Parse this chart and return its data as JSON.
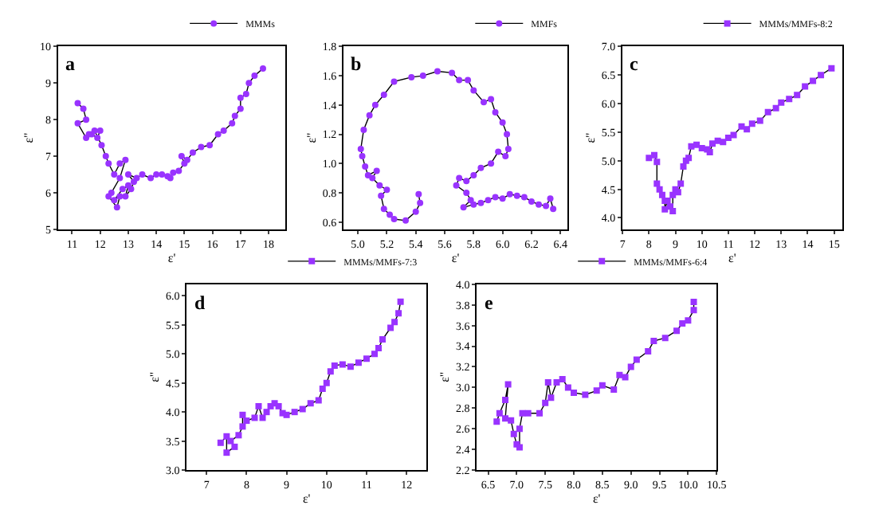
{
  "chart_data": [
    {
      "type": "line",
      "annotations": [
        "a"
      ],
      "xlabel": "ε'",
      "ylabel": "ε''",
      "xlim": [
        10.5,
        18.6
      ],
      "xticks": [
        11,
        12,
        13,
        14,
        15,
        16,
        17,
        18
      ],
      "ylim": [
        5,
        10
      ],
      "yticks": [
        5,
        6,
        7,
        8,
        9,
        10
      ],
      "marker": "circle",
      "legend": "top right",
      "series": [
        {
          "name": "MMMs",
          "color": "#9933ff",
          "x": [
            11.2,
            11.4,
            11.5,
            11.2,
            11.5,
            11.7,
            11.9,
            12.0,
            11.6,
            11.8,
            12.05,
            12.2,
            12.3,
            12.5,
            12.7,
            12.9,
            12.7,
            12.4,
            12.3,
            12.6,
            12.7,
            12.5,
            12.8,
            13.0,
            12.9,
            13.1,
            13.2,
            13.0,
            13.3,
            13.5,
            13.8,
            14.0,
            14.2,
            14.4,
            14.5,
            14.6,
            14.8,
            15.0,
            14.9,
            15.1,
            15.3,
            15.6,
            15.9,
            16.2,
            16.4,
            16.7,
            16.8,
            17.0,
            17.0,
            17.2,
            17.3,
            17.5,
            17.8
          ],
          "values": [
            8.45,
            8.3,
            8.0,
            7.9,
            7.5,
            7.6,
            7.5,
            7.7,
            7.6,
            7.7,
            7.3,
            7.0,
            6.8,
            6.5,
            6.8,
            6.9,
            6.4,
            6.0,
            5.9,
            5.6,
            5.9,
            5.8,
            6.1,
            6.2,
            5.9,
            6.1,
            6.3,
            6.5,
            6.4,
            6.5,
            6.4,
            6.5,
            6.5,
            6.45,
            6.4,
            6.55,
            6.6,
            6.8,
            7.0,
            6.9,
            7.1,
            7.25,
            7.3,
            7.6,
            7.7,
            7.9,
            8.1,
            8.3,
            8.6,
            8.7,
            9.0,
            9.2,
            9.4
          ]
        }
      ]
    },
    {
      "type": "line",
      "annotations": [
        "b"
      ],
      "xlabel": "ε'",
      "ylabel": "ε''",
      "xlim": [
        4.9,
        6.45
      ],
      "xticks": [
        {
          "value": 5.0,
          "label": "5.0"
        },
        5.2,
        5.4,
        5.6,
        5.8,
        {
          "value": 6.0,
          "label": "6.0"
        },
        6.2,
        6.4
      ],
      "ylim": [
        0.55,
        1.8
      ],
      "yticks": [
        0.6,
        0.8,
        {
          "value": 1.0,
          "label": "1.0"
        },
        1.2,
        1.4,
        1.6,
        1.8
      ],
      "marker": "circle",
      "legend": "top right",
      "series": [
        {
          "name": "MMFs",
          "color": "#9933ff",
          "x": [
            5.42,
            5.43,
            5.4,
            5.33,
            5.25,
            5.22,
            5.18,
            5.16,
            5.2,
            5.15,
            5.1,
            5.13,
            5.07,
            5.05,
            5.03,
            5.02,
            5.04,
            5.08,
            5.12,
            5.18,
            5.25,
            5.37,
            5.45,
            5.55,
            5.65,
            5.7,
            5.76,
            5.8,
            5.87,
            5.92,
            5.95,
            6.0,
            6.03,
            6.04,
            6.02,
            5.97,
            5.92,
            5.85,
            5.8,
            5.75,
            5.7,
            5.68,
            5.75,
            5.78,
            5.73,
            5.8,
            5.85,
            5.9,
            5.95,
            6.0,
            6.05,
            6.1,
            6.15,
            6.2,
            6.25,
            6.3,
            6.33,
            6.35
          ],
          "values": [
            0.79,
            0.73,
            0.67,
            0.61,
            0.62,
            0.65,
            0.69,
            0.78,
            0.82,
            0.85,
            0.9,
            0.95,
            0.92,
            0.98,
            1.05,
            1.1,
            1.23,
            1.33,
            1.4,
            1.47,
            1.56,
            1.59,
            1.6,
            1.63,
            1.62,
            1.57,
            1.57,
            1.5,
            1.42,
            1.44,
            1.35,
            1.28,
            1.2,
            1.1,
            1.05,
            1.08,
            1.0,
            0.97,
            0.92,
            0.88,
            0.9,
            0.85,
            0.8,
            0.75,
            0.7,
            0.72,
            0.73,
            0.75,
            0.77,
            0.76,
            0.79,
            0.78,
            0.77,
            0.74,
            0.72,
            0.71,
            0.76,
            0.69
          ]
        }
      ]
    },
    {
      "type": "line",
      "annotations": [
        "c"
      ],
      "xlabel": "ε'",
      "ylabel": "ε''",
      "xlim": [
        7,
        15.3
      ],
      "xticks": [
        7,
        8,
        9,
        10,
        11,
        12,
        13,
        14,
        15
      ],
      "ylim": [
        3.8,
        7.0
      ],
      "yticks": [
        {
          "value": 4.0,
          "label": "4.0"
        },
        4.5,
        {
          "value": 5.0,
          "label": "5.0"
        },
        5.5,
        {
          "value": 6.0,
          "label": "6.0"
        },
        6.5,
        {
          "value": 7.0,
          "label": "7.0"
        }
      ],
      "marker": "square",
      "legend": "top right",
      "series": [
        {
          "name": "MMMs/MMFs-8:2",
          "color": "#9933ff",
          "x": [
            8.0,
            8.2,
            8.3,
            8.3,
            8.4,
            8.5,
            8.6,
            8.6,
            8.7,
            8.8,
            8.9,
            8.9,
            9.0,
            9.1,
            9.2,
            9.3,
            9.4,
            9.5,
            9.6,
            9.8,
            10.0,
            10.2,
            10.3,
            10.4,
            10.6,
            10.8,
            11.0,
            11.2,
            11.5,
            11.7,
            11.9,
            12.2,
            12.5,
            12.8,
            13.0,
            13.3,
            13.6,
            13.9,
            14.2,
            14.5,
            14.9
          ],
          "values": [
            5.05,
            5.1,
            4.98,
            4.6,
            4.5,
            4.4,
            4.3,
            4.15,
            4.3,
            4.2,
            4.12,
            4.4,
            4.5,
            4.45,
            4.6,
            4.9,
            5.0,
            5.05,
            5.25,
            5.28,
            5.22,
            5.2,
            5.15,
            5.3,
            5.35,
            5.33,
            5.4,
            5.45,
            5.6,
            5.55,
            5.65,
            5.7,
            5.85,
            5.92,
            6.02,
            6.08,
            6.15,
            6.3,
            6.4,
            6.5,
            6.62
          ]
        }
      ]
    },
    {
      "type": "line",
      "annotations": [
        "d"
      ],
      "xlabel": "ε'",
      "ylabel": "ε''",
      "xlim": [
        6.5,
        12.5
      ],
      "xticks": [
        7,
        8,
        9,
        10,
        11,
        12
      ],
      "ylim": [
        3.0,
        6.2
      ],
      "yticks": [
        {
          "value": 3.0,
          "label": "3.0"
        },
        3.5,
        {
          "value": 4.0,
          "label": "4.0"
        },
        4.5,
        {
          "value": 5.0,
          "label": "5.0"
        },
        5.5,
        {
          "value": 6.0,
          "label": "6.0"
        }
      ],
      "marker": "square",
      "legend": "top right",
      "series": [
        {
          "name": "MMMs/MMFs-7:3",
          "color": "#9933ff",
          "x": [
            7.35,
            7.5,
            7.5,
            7.7,
            7.6,
            7.8,
            7.9,
            7.9,
            8.0,
            8.2,
            8.3,
            8.4,
            8.5,
            8.6,
            8.7,
            8.8,
            8.9,
            9.0,
            9.2,
            9.4,
            9.6,
            9.8,
            9.9,
            10.0,
            10.1,
            10.2,
            10.4,
            10.6,
            10.8,
            11.0,
            11.2,
            11.3,
            11.4,
            11.6,
            11.7,
            11.8,
            11.85
          ],
          "values": [
            3.47,
            3.58,
            3.3,
            3.4,
            3.5,
            3.6,
            3.75,
            3.95,
            3.85,
            3.9,
            4.1,
            3.9,
            4.0,
            4.1,
            4.15,
            4.1,
            3.98,
            3.95,
            4.0,
            4.05,
            4.15,
            4.2,
            4.4,
            4.5,
            4.7,
            4.8,
            4.82,
            4.78,
            4.85,
            4.92,
            5.0,
            5.1,
            5.25,
            5.45,
            5.55,
            5.7,
            5.9
          ]
        }
      ]
    },
    {
      "type": "line",
      "annotations": [
        "e"
      ],
      "xlabel": "ε'",
      "ylabel": "ε''",
      "xlim": [
        6.3,
        10.5
      ],
      "xticks": [
        6.5,
        {
          "value": 7.0,
          "label": "7.0"
        },
        7.5,
        {
          "value": 8.0,
          "label": "8.0"
        },
        8.5,
        {
          "value": 9.0,
          "label": "9.0"
        },
        9.5,
        {
          "value": 10.0,
          "label": "10.0"
        },
        10.5
      ],
      "ylim": [
        2.2,
        4.0
      ],
      "yticks": [
        2.2,
        2.4,
        2.6,
        2.8,
        {
          "value": 3.0,
          "label": "3.0"
        },
        3.2,
        3.4,
        3.6,
        3.8,
        {
          "value": 4.0,
          "label": "4.0"
        }
      ],
      "marker": "square",
      "legend": "top right",
      "series": [
        {
          "name": "MMMs/MMFs-6:4",
          "color": "#9933ff",
          "x": [
            6.65,
            6.7,
            6.8,
            6.85,
            6.8,
            6.9,
            6.95,
            7.0,
            7.05,
            7.05,
            7.1,
            7.2,
            7.4,
            7.5,
            7.55,
            7.6,
            7.7,
            7.8,
            7.9,
            8.0,
            8.2,
            8.4,
            8.5,
            8.7,
            8.8,
            8.9,
            9.0,
            9.1,
            9.3,
            9.4,
            9.6,
            9.8,
            9.9,
            10.0,
            10.1,
            10.1
          ],
          "values": [
            2.67,
            2.75,
            2.88,
            3.03,
            2.7,
            2.68,
            2.55,
            2.45,
            2.42,
            2.6,
            2.75,
            2.75,
            2.75,
            2.85,
            3.05,
            2.9,
            3.05,
            3.08,
            3.0,
            2.95,
            2.93,
            2.97,
            3.02,
            2.98,
            3.12,
            3.1,
            3.2,
            3.27,
            3.35,
            3.45,
            3.48,
            3.55,
            3.62,
            3.65,
            3.75,
            3.83
          ]
        }
      ]
    }
  ]
}
